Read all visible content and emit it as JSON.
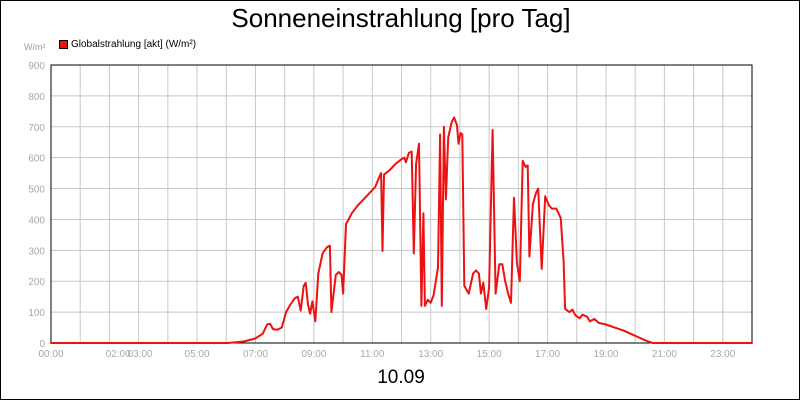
{
  "chart_data": {
    "type": "line",
    "title": "Sonneneinstrahlung [pro Tag]",
    "ylabel": "W/m²",
    "xlabel": "10.09",
    "xlim": [
      0,
      24
    ],
    "ylim": [
      0,
      900
    ],
    "yticks": [
      0,
      100,
      200,
      300,
      400,
      500,
      600,
      700,
      800,
      900
    ],
    "xticks": [
      {
        "t": 0,
        "label": "00:00"
      },
      {
        "t": 2.3,
        "label": "02:00"
      },
      {
        "t": 3.05,
        "label": "03:00"
      },
      {
        "t": 5,
        "label": "05:00"
      },
      {
        "t": 7,
        "label": "07:00"
      },
      {
        "t": 9,
        "label": "09:00"
      },
      {
        "t": 11,
        "label": "11:00"
      },
      {
        "t": 13,
        "label": "13:00"
      },
      {
        "t": 15,
        "label": "15:00"
      },
      {
        "t": 17,
        "label": "17:00"
      },
      {
        "t": 19,
        "label": "19:00"
      },
      {
        "t": 21,
        "label": "21:00"
      },
      {
        "t": 23,
        "label": "23:00"
      }
    ],
    "grid": true,
    "legend_position": "top-left",
    "series": [
      {
        "name": "Globalstrahlung [akt] (W/m²)",
        "color": "#ee1111",
        "points": [
          [
            0,
            0
          ],
          [
            6.05,
            0
          ],
          [
            6.6,
            5
          ],
          [
            7.0,
            15
          ],
          [
            7.25,
            30
          ],
          [
            7.4,
            60
          ],
          [
            7.5,
            62
          ],
          [
            7.6,
            45
          ],
          [
            7.75,
            43
          ],
          [
            7.9,
            50
          ],
          [
            8.05,
            100
          ],
          [
            8.2,
            125
          ],
          [
            8.35,
            145
          ],
          [
            8.45,
            150
          ],
          [
            8.55,
            105
          ],
          [
            8.65,
            185
          ],
          [
            8.72,
            195
          ],
          [
            8.8,
            125
          ],
          [
            8.87,
            95
          ],
          [
            8.95,
            135
          ],
          [
            9.05,
            70
          ],
          [
            9.15,
            225
          ],
          [
            9.3,
            290
          ],
          [
            9.45,
            310
          ],
          [
            9.55,
            315
          ],
          [
            9.6,
            100
          ],
          [
            9.75,
            220
          ],
          [
            9.85,
            230
          ],
          [
            9.95,
            220
          ],
          [
            10.0,
            160
          ],
          [
            10.1,
            385
          ],
          [
            10.3,
            420
          ],
          [
            10.5,
            445
          ],
          [
            10.7,
            465
          ],
          [
            10.9,
            485
          ],
          [
            11.1,
            505
          ],
          [
            11.25,
            540
          ],
          [
            11.3,
            550
          ],
          [
            11.35,
            298
          ],
          [
            11.4,
            545
          ],
          [
            11.6,
            560
          ],
          [
            11.8,
            580
          ],
          [
            12.0,
            595
          ],
          [
            12.1,
            600
          ],
          [
            12.15,
            585
          ],
          [
            12.25,
            615
          ],
          [
            12.35,
            620
          ],
          [
            12.42,
            290
          ],
          [
            12.5,
            580
          ],
          [
            12.6,
            645
          ],
          [
            12.68,
            120
          ],
          [
            12.75,
            420
          ],
          [
            12.8,
            120
          ],
          [
            12.9,
            140
          ],
          [
            13.0,
            130
          ],
          [
            13.1,
            155
          ],
          [
            13.25,
            245
          ],
          [
            13.32,
            675
          ],
          [
            13.38,
            120
          ],
          [
            13.45,
            700
          ],
          [
            13.52,
            465
          ],
          [
            13.6,
            665
          ],
          [
            13.72,
            715
          ],
          [
            13.8,
            730
          ],
          [
            13.9,
            705
          ],
          [
            13.95,
            645
          ],
          [
            14.02,
            680
          ],
          [
            14.08,
            675
          ],
          [
            14.15,
            185
          ],
          [
            14.3,
            160
          ],
          [
            14.45,
            225
          ],
          [
            14.55,
            235
          ],
          [
            14.65,
            225
          ],
          [
            14.72,
            160
          ],
          [
            14.8,
            195
          ],
          [
            14.9,
            110
          ],
          [
            15.0,
            180
          ],
          [
            15.12,
            690
          ],
          [
            15.22,
            160
          ],
          [
            15.35,
            255
          ],
          [
            15.45,
            255
          ],
          [
            15.55,
            200
          ],
          [
            15.65,
            160
          ],
          [
            15.75,
            130
          ],
          [
            15.85,
            470
          ],
          [
            15.95,
            260
          ],
          [
            16.05,
            200
          ],
          [
            16.15,
            590
          ],
          [
            16.25,
            570
          ],
          [
            16.32,
            575
          ],
          [
            16.38,
            280
          ],
          [
            16.5,
            450
          ],
          [
            16.6,
            485
          ],
          [
            16.68,
            500
          ],
          [
            16.8,
            240
          ],
          [
            16.92,
            475
          ],
          [
            17.05,
            445
          ],
          [
            17.15,
            435
          ],
          [
            17.3,
            435
          ],
          [
            17.45,
            405
          ],
          [
            17.55,
            265
          ],
          [
            17.6,
            110
          ],
          [
            17.75,
            100
          ],
          [
            17.85,
            108
          ],
          [
            17.95,
            90
          ],
          [
            18.1,
            80
          ],
          [
            18.2,
            92
          ],
          [
            18.35,
            85
          ],
          [
            18.45,
            70
          ],
          [
            18.6,
            78
          ],
          [
            18.75,
            65
          ],
          [
            19.0,
            60
          ],
          [
            19.3,
            50
          ],
          [
            19.6,
            40
          ],
          [
            19.9,
            28
          ],
          [
            20.2,
            15
          ],
          [
            20.45,
            5
          ],
          [
            20.6,
            0
          ],
          [
            24.0,
            0
          ]
        ]
      }
    ]
  }
}
